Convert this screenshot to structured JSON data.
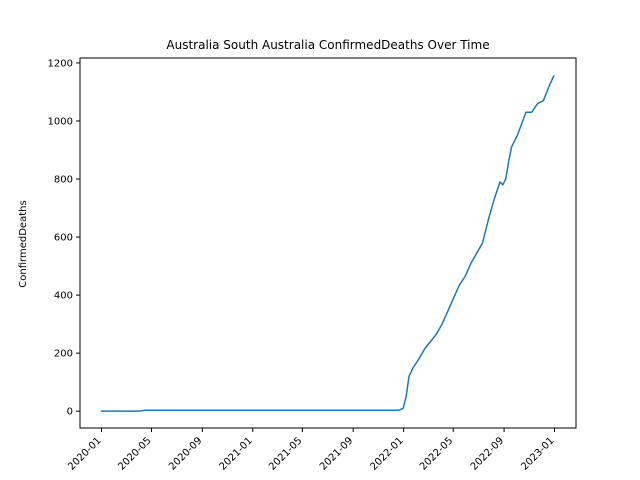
{
  "chart_data": {
    "type": "line",
    "title": "Australia South Australia ConfirmedDeaths Over Time",
    "xlabel": "",
    "ylabel": "ConfirmedDeaths",
    "x_ticks": [
      "2020-01",
      "2020-05",
      "2020-09",
      "2021-01",
      "2021-05",
      "2021-09",
      "2022-01",
      "2022-05",
      "2022-09",
      "2023-01"
    ],
    "y_ticks": [
      0,
      200,
      400,
      600,
      800,
      1000,
      1200
    ],
    "xlim": [
      "2019-11-10",
      "2023-02-22"
    ],
    "ylim": [
      -58,
      1217
    ],
    "grid": false,
    "legend": "none",
    "series": [
      {
        "color": "#1f77b4",
        "x": [
          "2020-01-01",
          "2020-04-01",
          "2020-04-15",
          "2021-12-20",
          "2021-12-31",
          "2022-01-07",
          "2022-01-14",
          "2022-01-24",
          "2022-02-07",
          "2022-02-21",
          "2022-03-07",
          "2022-03-21",
          "2022-04-04",
          "2022-04-18",
          "2022-05-02",
          "2022-05-16",
          "2022-05-30",
          "2022-06-13",
          "2022-06-27",
          "2022-07-11",
          "2022-07-25",
          "2022-08-08",
          "2022-08-22",
          "2022-08-29",
          "2022-09-05",
          "2022-09-12",
          "2022-09-19",
          "2022-09-26",
          "2022-10-03",
          "2022-10-24",
          "2022-11-07",
          "2022-11-21",
          "2022-12-05",
          "2022-12-19",
          "2022-12-30"
        ],
        "y": [
          0,
          0,
          3,
          3,
          10,
          50,
          120,
          150,
          180,
          215,
          240,
          265,
          300,
          345,
          390,
          435,
          465,
          510,
          545,
          580,
          660,
          730,
          790,
          780,
          800,
          860,
          910,
          930,
          950,
          1030,
          1030,
          1060,
          1070,
          1120,
          1155
        ]
      }
    ]
  }
}
